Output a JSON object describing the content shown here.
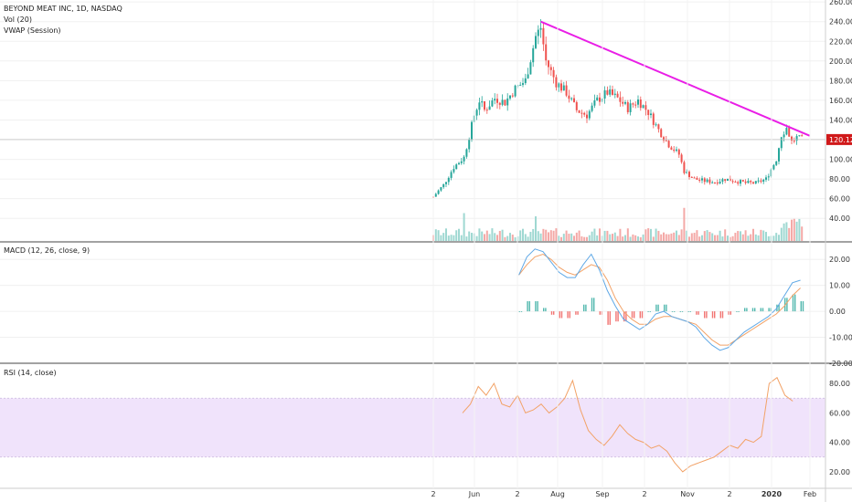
{
  "header": {
    "symbol": "BEYOND MEAT INC, 1D, NASDAQ",
    "volume": "Vol (20)",
    "vwap": "VWAP (Session)"
  },
  "panes": {
    "macd_label": "MACD (12, 26, close, 9)",
    "rsi_label": "RSI (14, close)"
  },
  "colors": {
    "up": "#26a69a",
    "down": "#ef5350",
    "trendline": "#e91ee6",
    "last_price_bg": "#d0191a",
    "macd_line": "#5fa8e6",
    "signal_line": "#f2a267",
    "rsi_line": "#f2a267",
    "rsi_band": "#f0e3fb"
  },
  "chart_data": [
    {
      "type": "candlestick",
      "x_ticks": [
        "2",
        "Jun",
        "2",
        "Aug",
        "Sep",
        "2",
        "Nov",
        "2",
        "2020",
        "Feb"
      ],
      "y_ticks": [
        "260.00",
        "240.00",
        "220.00",
        "200.00",
        "180.00",
        "160.00",
        "140.00",
        "120.00",
        "100.00",
        "80.00",
        "60.00",
        "40.00"
      ],
      "ylim": [
        30,
        262
      ],
      "last_price": "120.12",
      "price_path": [
        [
          0,
          62
        ],
        [
          4,
          74
        ],
        [
          8,
          92
        ],
        [
          12,
          102
        ],
        [
          16,
          145
        ],
        [
          18,
          160
        ],
        [
          20,
          150
        ],
        [
          24,
          162
        ],
        [
          28,
          158
        ],
        [
          32,
          172
        ],
        [
          36,
          180
        ],
        [
          40,
          225
        ],
        [
          42,
          234
        ],
        [
          44,
          200
        ],
        [
          48,
          178
        ],
        [
          52,
          168
        ],
        [
          56,
          150
        ],
        [
          60,
          145
        ],
        [
          64,
          160
        ],
        [
          68,
          168
        ],
        [
          72,
          162
        ],
        [
          76,
          152
        ],
        [
          80,
          160
        ],
        [
          84,
          148
        ],
        [
          88,
          130
        ],
        [
          92,
          115
        ],
        [
          96,
          105
        ],
        [
          98,
          88
        ],
        [
          102,
          80
        ],
        [
          106,
          78
        ],
        [
          110,
          77
        ],
        [
          114,
          80
        ],
        [
          118,
          78
        ],
        [
          122,
          76
        ],
        [
          126,
          76
        ],
        [
          130,
          80
        ],
        [
          134,
          100
        ],
        [
          136,
          125
        ],
        [
          138,
          132
        ],
        [
          140,
          118
        ],
        [
          142,
          122
        ],
        [
          144,
          120
        ]
      ],
      "trendline": [
        [
          42,
          240
        ],
        [
          147,
          124
        ]
      ]
    },
    {
      "type": "histogram+line",
      "name_shown": "MACD (12, 26, close, 9)",
      "y_ticks": [
        "20.00",
        "10.00",
        "0.00",
        "-10.00",
        "-20.00"
      ],
      "ylim": [
        -20,
        25
      ],
      "macd": [
        [
          9,
          14
        ],
        [
          11,
          21
        ],
        [
          13,
          24
        ],
        [
          15,
          23
        ],
        [
          17,
          19
        ],
        [
          19,
          15
        ],
        [
          21,
          13
        ],
        [
          23,
          13
        ],
        [
          25,
          18
        ],
        [
          27,
          22
        ],
        [
          29,
          16
        ],
        [
          31,
          8
        ],
        [
          33,
          2
        ],
        [
          35,
          -3
        ],
        [
          37,
          -5
        ],
        [
          39,
          -7
        ],
        [
          41,
          -5
        ],
        [
          43,
          -1
        ],
        [
          45,
          0
        ],
        [
          47,
          -2
        ],
        [
          49,
          -3
        ],
        [
          51,
          -4
        ],
        [
          53,
          -6
        ],
        [
          55,
          -10
        ],
        [
          57,
          -13
        ],
        [
          59,
          -15
        ],
        [
          61,
          -14
        ],
        [
          63,
          -11
        ],
        [
          65,
          -8
        ],
        [
          67,
          -6
        ],
        [
          69,
          -4
        ],
        [
          71,
          -2
        ],
        [
          73,
          1
        ],
        [
          75,
          6
        ],
        [
          77,
          11
        ],
        [
          79,
          12
        ]
      ],
      "signal": [
        [
          9,
          14
        ],
        [
          11,
          18
        ],
        [
          13,
          21
        ],
        [
          15,
          22
        ],
        [
          17,
          20
        ],
        [
          19,
          17
        ],
        [
          21,
          15
        ],
        [
          23,
          14
        ],
        [
          25,
          16
        ],
        [
          27,
          18
        ],
        [
          29,
          17
        ],
        [
          31,
          12
        ],
        [
          33,
          5
        ],
        [
          35,
          0
        ],
        [
          37,
          -3
        ],
        [
          39,
          -5
        ],
        [
          41,
          -5
        ],
        [
          43,
          -3
        ],
        [
          45,
          -2
        ],
        [
          47,
          -2
        ],
        [
          49,
          -3
        ],
        [
          51,
          -4
        ],
        [
          53,
          -5
        ],
        [
          55,
          -8
        ],
        [
          57,
          -11
        ],
        [
          59,
          -13
        ],
        [
          61,
          -13
        ],
        [
          63,
          -11
        ],
        [
          65,
          -9
        ],
        [
          67,
          -7
        ],
        [
          69,
          -5
        ],
        [
          71,
          -3
        ],
        [
          73,
          -1
        ],
        [
          75,
          2
        ],
        [
          77,
          6
        ],
        [
          79,
          9
        ]
      ]
    },
    {
      "type": "line",
      "name_shown": "RSI (14, close)",
      "y_ticks": [
        "80.00",
        "60.00",
        "40.00",
        "20.00"
      ],
      "ylim": [
        10,
        90
      ],
      "band": [
        30,
        70
      ],
      "rsi": [
        [
          0,
          60
        ],
        [
          2,
          66
        ],
        [
          4,
          78
        ],
        [
          6,
          72
        ],
        [
          8,
          80
        ],
        [
          10,
          66
        ],
        [
          12,
          64
        ],
        [
          14,
          72
        ],
        [
          16,
          60
        ],
        [
          18,
          62
        ],
        [
          20,
          66
        ],
        [
          22,
          60
        ],
        [
          24,
          64
        ],
        [
          26,
          70
        ],
        [
          28,
          82
        ],
        [
          30,
          62
        ],
        [
          32,
          48
        ],
        [
          34,
          42
        ],
        [
          36,
          38
        ],
        [
          38,
          44
        ],
        [
          40,
          52
        ],
        [
          42,
          46
        ],
        [
          44,
          42
        ],
        [
          46,
          40
        ],
        [
          48,
          36
        ],
        [
          50,
          38
        ],
        [
          52,
          34
        ],
        [
          54,
          26
        ],
        [
          56,
          20
        ],
        [
          58,
          24
        ],
        [
          60,
          26
        ],
        [
          62,
          28
        ],
        [
          64,
          30
        ],
        [
          66,
          34
        ],
        [
          68,
          38
        ],
        [
          70,
          36
        ],
        [
          72,
          42
        ],
        [
          74,
          40
        ],
        [
          76,
          44
        ],
        [
          78,
          80
        ],
        [
          80,
          84
        ],
        [
          82,
          72
        ],
        [
          84,
          68
        ]
      ]
    }
  ]
}
